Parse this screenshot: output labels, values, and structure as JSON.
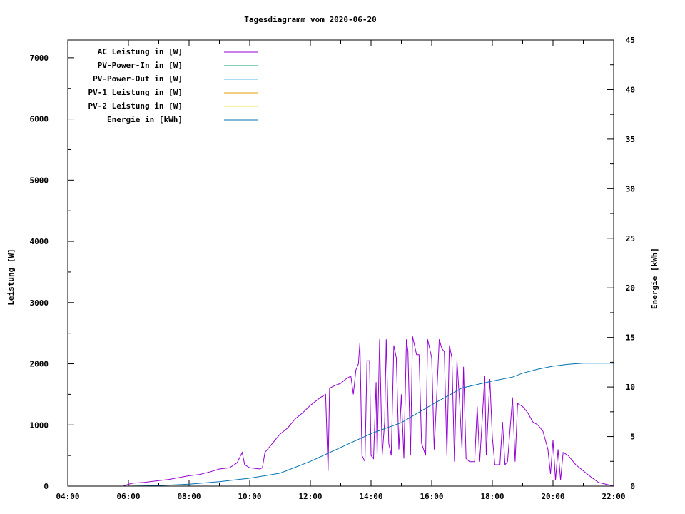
{
  "chart_data": {
    "type": "line",
    "title": "Tagesdiagramm vom 2020-06-20",
    "ylabel": "Leistung [W]",
    "y2label": "Energie [kWh]",
    "xlabel": "",
    "xlim": [
      "04:00",
      "22:00"
    ],
    "ylim": [
      0,
      7290
    ],
    "y2lim": [
      0,
      45
    ],
    "x_ticks": [
      "04:00",
      "06:00",
      "08:00",
      "10:00",
      "12:00",
      "14:00",
      "16:00",
      "18:00",
      "20:00",
      "22:00"
    ],
    "y_ticks": [
      0,
      1000,
      2000,
      3000,
      4000,
      5000,
      6000,
      7000
    ],
    "y2_ticks": [
      0,
      5,
      10,
      15,
      20,
      25,
      30,
      35,
      40,
      45
    ],
    "grid": false,
    "legend_position": "top-left",
    "series": [
      {
        "name": "AC Leistung in [W]",
        "color": "#9400d3",
        "axis": "left",
        "points": [
          [
            "05:50",
            0
          ],
          [
            "06:00",
            30
          ],
          [
            "06:10",
            50
          ],
          [
            "06:30",
            60
          ],
          [
            "07:00",
            90
          ],
          [
            "07:20",
            110
          ],
          [
            "07:40",
            140
          ],
          [
            "08:00",
            170
          ],
          [
            "08:20",
            190
          ],
          [
            "08:40",
            230
          ],
          [
            "09:00",
            280
          ],
          [
            "09:20",
            300
          ],
          [
            "09:35",
            380
          ],
          [
            "09:45",
            550
          ],
          [
            "09:50",
            350
          ],
          [
            "10:00",
            300
          ],
          [
            "10:20",
            280
          ],
          [
            "10:25",
            300
          ],
          [
            "10:30",
            550
          ],
          [
            "10:45",
            700
          ],
          [
            "11:00",
            850
          ],
          [
            "11:15",
            950
          ],
          [
            "11:30",
            1100
          ],
          [
            "11:45",
            1200
          ],
          [
            "12:00",
            1320
          ],
          [
            "12:20",
            1450
          ],
          [
            "12:30",
            1500
          ],
          [
            "12:35",
            250
          ],
          [
            "12:38",
            1600
          ],
          [
            "12:50",
            1650
          ],
          [
            "13:00",
            1680
          ],
          [
            "13:10",
            1750
          ],
          [
            "13:20",
            1800
          ],
          [
            "13:25",
            1500
          ],
          [
            "13:30",
            1900
          ],
          [
            "13:35",
            2000
          ],
          [
            "13:38",
            2350
          ],
          [
            "13:42",
            500
          ],
          [
            "13:48",
            400
          ],
          [
            "13:52",
            2050
          ],
          [
            "13:57",
            2050
          ],
          [
            "14:00",
            500
          ],
          [
            "14:05",
            450
          ],
          [
            "14:10",
            1700
          ],
          [
            "14:12",
            500
          ],
          [
            "14:17",
            2400
          ],
          [
            "14:22",
            500
          ],
          [
            "14:27",
            1050
          ],
          [
            "14:30",
            2400
          ],
          [
            "14:35",
            700
          ],
          [
            "14:40",
            500
          ],
          [
            "14:45",
            2300
          ],
          [
            "14:50",
            2100
          ],
          [
            "14:55",
            600
          ],
          [
            "15:00",
            1500
          ],
          [
            "15:05",
            450
          ],
          [
            "15:10",
            2400
          ],
          [
            "15:13",
            2200
          ],
          [
            "15:18",
            500
          ],
          [
            "15:22",
            2450
          ],
          [
            "15:30",
            2150
          ],
          [
            "15:35",
            2150
          ],
          [
            "15:40",
            700
          ],
          [
            "15:48",
            500
          ],
          [
            "15:52",
            2400
          ],
          [
            "16:00",
            2100
          ],
          [
            "16:05",
            600
          ],
          [
            "16:10",
            1500
          ],
          [
            "16:15",
            2400
          ],
          [
            "16:20",
            2250
          ],
          [
            "16:25",
            2200
          ],
          [
            "16:30",
            500
          ],
          [
            "16:35",
            2300
          ],
          [
            "16:40",
            2100
          ],
          [
            "16:45",
            400
          ],
          [
            "16:50",
            2050
          ],
          [
            "16:55",
            1400
          ],
          [
            "17:00",
            600
          ],
          [
            "17:03",
            1950
          ],
          [
            "17:08",
            450
          ],
          [
            "17:15",
            400
          ],
          [
            "17:25",
            400
          ],
          [
            "17:30",
            1300
          ],
          [
            "17:35",
            400
          ],
          [
            "17:45",
            1800
          ],
          [
            "17:48",
            500
          ],
          [
            "17:55",
            1750
          ],
          [
            "18:00",
            800
          ],
          [
            "18:05",
            350
          ],
          [
            "18:15",
            350
          ],
          [
            "18:20",
            1050
          ],
          [
            "18:25",
            350
          ],
          [
            "18:30",
            400
          ],
          [
            "18:40",
            1450
          ],
          [
            "18:45",
            400
          ],
          [
            "18:50",
            1350
          ],
          [
            "19:00",
            1300
          ],
          [
            "19:10",
            1200
          ],
          [
            "19:20",
            1050
          ],
          [
            "19:30",
            1000
          ],
          [
            "19:40",
            900
          ],
          [
            "19:50",
            600
          ],
          [
            "19:55",
            200
          ],
          [
            "20:00",
            750
          ],
          [
            "20:05",
            100
          ],
          [
            "20:10",
            600
          ],
          [
            "20:15",
            100
          ],
          [
            "20:20",
            550
          ],
          [
            "20:30",
            500
          ],
          [
            "20:45",
            350
          ],
          [
            "21:00",
            250
          ],
          [
            "21:15",
            150
          ],
          [
            "21:30",
            60
          ],
          [
            "21:45",
            30
          ],
          [
            "22:00",
            0
          ]
        ]
      },
      {
        "name": "PV-Power-In in [W]",
        "color": "#009e73",
        "axis": "left",
        "points": []
      },
      {
        "name": "PV-Power-Out in [W]",
        "color": "#56b4e9",
        "axis": "left",
        "points": []
      },
      {
        "name": "PV-1 Leistung in [W]",
        "color": "#e69f00",
        "axis": "left",
        "points": []
      },
      {
        "name": "PV-2 Leistung in [W]",
        "color": "#f0e442",
        "axis": "left",
        "points": []
      },
      {
        "name": "Energie in [kWh]",
        "color": "#0072b2",
        "axis": "right",
        "points": [
          [
            "06:00",
            0
          ],
          [
            "07:00",
            0.05
          ],
          [
            "08:00",
            0.2
          ],
          [
            "09:00",
            0.45
          ],
          [
            "10:00",
            0.8
          ],
          [
            "11:00",
            1.3
          ],
          [
            "12:00",
            2.5
          ],
          [
            "13:00",
            3.9
          ],
          [
            "14:00",
            5.3
          ],
          [
            "15:00",
            6.4
          ],
          [
            "16:00",
            8.2
          ],
          [
            "17:00",
            9.9
          ],
          [
            "18:00",
            10.6
          ],
          [
            "18:40",
            11.0
          ],
          [
            "19:00",
            11.4
          ],
          [
            "19:30",
            11.8
          ],
          [
            "20:00",
            12.1
          ],
          [
            "20:30",
            12.3
          ],
          [
            "21:00",
            12.4
          ],
          [
            "22:00",
            12.4
          ]
        ]
      }
    ]
  }
}
